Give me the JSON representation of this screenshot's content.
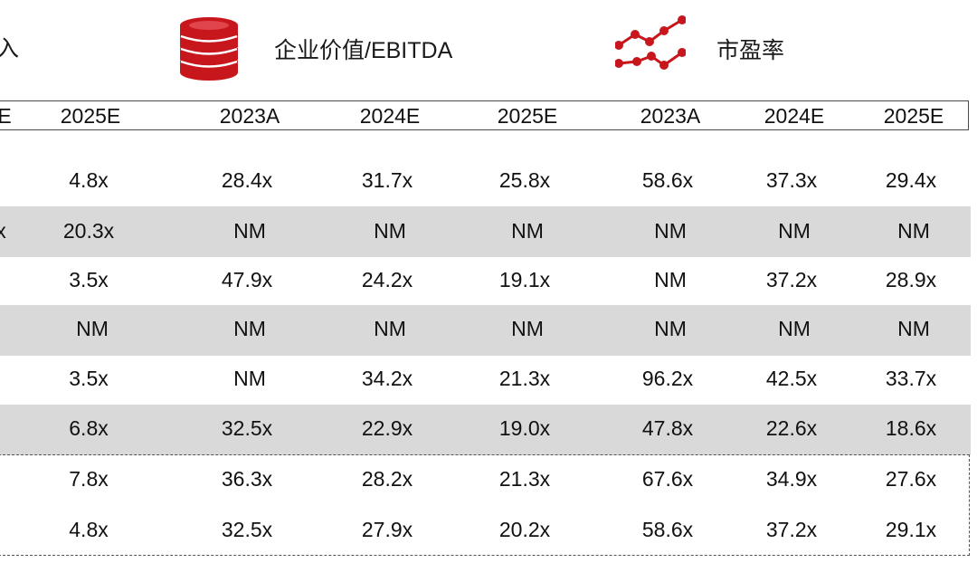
{
  "header": {
    "col1_partial": "入",
    "col2_title": "企业价值/EBITDA",
    "col3_title": "市盈率",
    "icons": [
      "coins-stack-icon",
      "line-chart-icon"
    ],
    "accent_color": "#c8161d"
  },
  "years": [
    "E",
    "2025E",
    "2023A",
    "2024E",
    "2025E",
    "2023A",
    "2024E",
    "2025E"
  ],
  "rows": [
    [
      "",
      "4.8x",
      "28.4x",
      "31.7x",
      "25.8x",
      "58.6x",
      "37.3x",
      "29.4x"
    ],
    [
      "x",
      "20.3x",
      "NM",
      "NM",
      "NM",
      "NM",
      "NM",
      "NM"
    ],
    [
      "",
      "3.5x",
      "47.9x",
      "24.2x",
      "19.1x",
      "NM",
      "37.2x",
      "28.9x"
    ],
    [
      "",
      "NM",
      "NM",
      "NM",
      "NM",
      "NM",
      "NM",
      "NM"
    ],
    [
      "",
      "3.5x",
      "NM",
      "34.2x",
      "21.3x",
      "96.2x",
      "42.5x",
      "33.7x"
    ],
    [
      "",
      "6.8x",
      "32.5x",
      "22.9x",
      "19.0x",
      "47.8x",
      "22.6x",
      "18.6x"
    ],
    [
      "",
      "7.8x",
      "36.3x",
      "28.2x",
      "21.3x",
      "67.6x",
      "34.9x",
      "27.6x"
    ],
    [
      "",
      "4.8x",
      "32.5x",
      "27.9x",
      "20.2x",
      "58.6x",
      "37.2x",
      "29.1x"
    ]
  ]
}
